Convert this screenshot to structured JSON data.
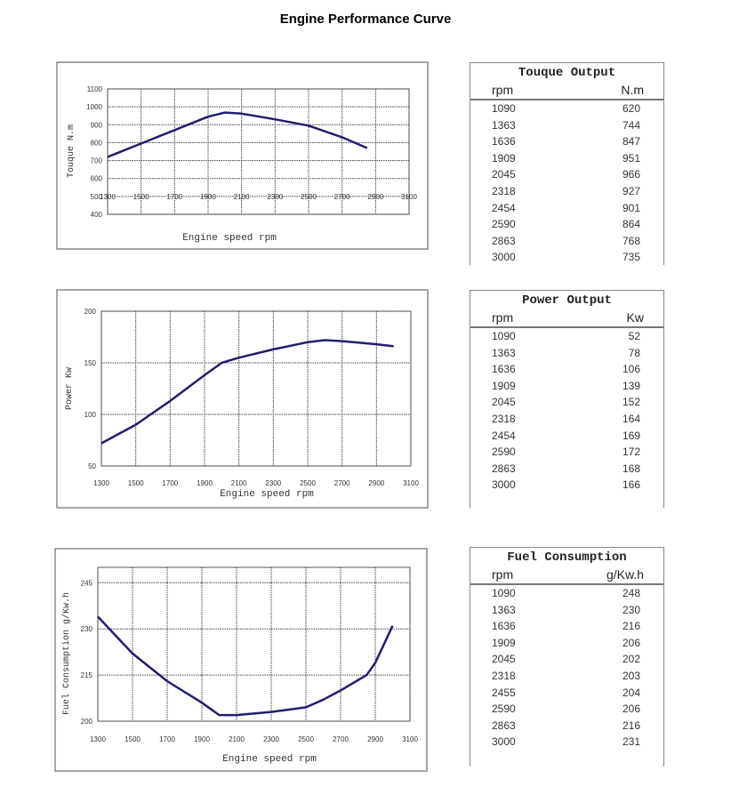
{
  "title": "Engine Performance Curve",
  "tables": [
    {
      "title": "Touque Output",
      "col1": "rpm",
      "col2": "N.m",
      "rows": [
        [
          "1090",
          "620"
        ],
        [
          "1363",
          "744"
        ],
        [
          "1636",
          "847"
        ],
        [
          "1909",
          "951"
        ],
        [
          "2045",
          "966"
        ],
        [
          "2318",
          "927"
        ],
        [
          "2454",
          "901"
        ],
        [
          "2590",
          "864"
        ],
        [
          "2863",
          "768"
        ],
        [
          "3000",
          "735"
        ]
      ]
    },
    {
      "title": "Power Output",
      "col1": "rpm",
      "col2": "Kw",
      "rows": [
        [
          "1090",
          "52"
        ],
        [
          "1363",
          "78"
        ],
        [
          "1636",
          "106"
        ],
        [
          "1909",
          "139"
        ],
        [
          "2045",
          "152"
        ],
        [
          "2318",
          "164"
        ],
        [
          "2454",
          "169"
        ],
        [
          "2590",
          "172"
        ],
        [
          "2863",
          "168"
        ],
        [
          "3000",
          "166"
        ]
      ]
    },
    {
      "title": "Fuel Consumption",
      "col1": "rpm",
      "col2": "g/Kw.h",
      "rows": [
        [
          "1090",
          "248"
        ],
        [
          "1363",
          "230"
        ],
        [
          "1636",
          "216"
        ],
        [
          "1909",
          "206"
        ],
        [
          "2045",
          "202"
        ],
        [
          "2318",
          "203"
        ],
        [
          "2455",
          "204"
        ],
        [
          "2590",
          "206"
        ],
        [
          "2863",
          "216"
        ],
        [
          "3000",
          "231"
        ]
      ]
    }
  ],
  "chart_data": [
    {
      "type": "line",
      "xlabel": "Engine speed rpm",
      "ylabel": "Touque N.m",
      "xlim": [
        1300,
        3100
      ],
      "ylim": [
        400,
        1100
      ],
      "xticks": [
        1300,
        1500,
        1700,
        1900,
        2100,
        2300,
        2500,
        2700,
        2900,
        3100
      ],
      "yticks": [
        400,
        500,
        600,
        700,
        800,
        900,
        1000,
        1100
      ],
      "grid": true,
      "line_color": "#1f1f6e",
      "x": [
        1300,
        1500,
        1700,
        1900,
        2000,
        2100,
        2300,
        2500,
        2700,
        2850
      ],
      "y": [
        720,
        795,
        870,
        945,
        968,
        962,
        930,
        895,
        830,
        770
      ]
    },
    {
      "type": "line",
      "xlabel": "Engine speed rpm",
      "ylabel": "Power Kw",
      "xlim": [
        1300,
        3100
      ],
      "ylim": [
        50,
        200
      ],
      "xticks": [
        1300,
        1500,
        1700,
        1900,
        2100,
        2300,
        2500,
        2700,
        2900,
        3100
      ],
      "yticks": [
        50,
        100,
        150,
        200
      ],
      "grid": true,
      "line_color": "#1f1f6e",
      "x": [
        1300,
        1500,
        1700,
        1900,
        2000,
        2100,
        2300,
        2500,
        2600,
        2700,
        2900,
        3000
      ],
      "y": [
        72,
        90,
        113,
        138,
        150,
        155,
        163,
        170,
        172,
        171,
        168,
        166
      ]
    },
    {
      "type": "line",
      "xlabel": "Engine speed rpm",
      "ylabel": "Fuel Consumption g/Kw.h",
      "xlim": [
        1300,
        3100
      ],
      "ylim": [
        200,
        250
      ],
      "xticks": [
        1300,
        1500,
        1700,
        1900,
        2100,
        2300,
        2500,
        2700,
        2900,
        3100
      ],
      "yticks": [
        200,
        215,
        230,
        245
      ],
      "grid": true,
      "line_color": "#1f1f6e",
      "x": [
        1300,
        1500,
        1700,
        1900,
        2000,
        2100,
        2300,
        2500,
        2600,
        2700,
        2850,
        2900,
        3000
      ],
      "y": [
        234,
        222,
        213,
        206,
        202,
        202,
        203,
        204.5,
        207,
        210,
        215,
        219,
        231
      ]
    }
  ]
}
